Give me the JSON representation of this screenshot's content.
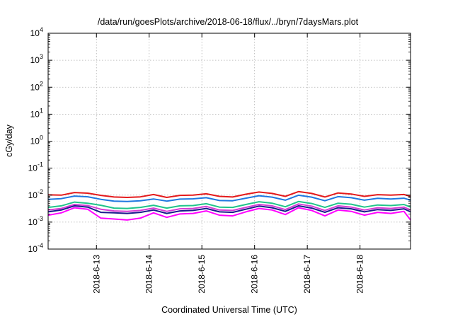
{
  "chart_data": {
    "type": "line",
    "title": "/data/run/goesPlots/archive/2018-06-18/flux/../bryn/7daysMars.plot",
    "xlabel": "Coordinated Universal Time (UTC)",
    "ylabel": "cGy/day",
    "yscale": "log",
    "ylim": [
      0.0001,
      10000
    ],
    "xlim": [
      "2018-06-12T02:00",
      "2018-06-18T23:00"
    ],
    "x_ticks": [
      "2018-6-13",
      "2018-6-14",
      "2018-6-15",
      "2018-6-16",
      "2018-6-17",
      "2018-6-18"
    ],
    "y_ticks": [
      {
        "base": "10",
        "exp": "-4",
        "value": 0.0001
      },
      {
        "base": "10",
        "exp": "-3",
        "value": 0.001
      },
      {
        "base": "10",
        "exp": "-2",
        "value": 0.01
      },
      {
        "base": "10",
        "exp": "-1",
        "value": 0.1
      },
      {
        "base": "10",
        "exp": "0",
        "value": 1
      },
      {
        "base": "10",
        "exp": "1",
        "value": 10
      },
      {
        "base": "10",
        "exp": "2",
        "value": 100
      },
      {
        "base": "10",
        "exp": "3",
        "value": 1000
      },
      {
        "base": "10",
        "exp": "4",
        "value": 10000
      }
    ],
    "grid": true,
    "x": [
      "2018-06-12T02:00",
      "2018-06-12T08:00",
      "2018-06-12T14:00",
      "2018-06-12T20:00",
      "2018-06-13T02:00",
      "2018-06-13T08:00",
      "2018-06-13T14:00",
      "2018-06-13T20:00",
      "2018-06-14T02:00",
      "2018-06-14T08:00",
      "2018-06-14T14:00",
      "2018-06-14T20:00",
      "2018-06-15T02:00",
      "2018-06-15T08:00",
      "2018-06-15T14:00",
      "2018-06-15T20:00",
      "2018-06-16T02:00",
      "2018-06-16T08:00",
      "2018-06-16T14:00",
      "2018-06-16T20:00",
      "2018-06-17T02:00",
      "2018-06-17T08:00",
      "2018-06-17T14:00",
      "2018-06-17T20:00",
      "2018-06-18T02:00",
      "2018-06-18T08:00",
      "2018-06-18T14:00",
      "2018-06-18T20:00",
      "2018-06-18T23:00"
    ],
    "series": [
      {
        "color": "#e41a1c",
        "values": [
          0.0102,
          0.01,
          0.0125,
          0.0118,
          0.0098,
          0.0085,
          0.0082,
          0.0086,
          0.0105,
          0.0082,
          0.0098,
          0.01,
          0.0112,
          0.009,
          0.0085,
          0.0108,
          0.013,
          0.0115,
          0.009,
          0.0135,
          0.0115,
          0.0085,
          0.012,
          0.011,
          0.009,
          0.0104,
          0.01,
          0.0105,
          0.009
        ]
      },
      {
        "color": "#1f78e0",
        "values": [
          0.007,
          0.0074,
          0.0092,
          0.0087,
          0.007,
          0.006,
          0.0058,
          0.0062,
          0.0072,
          0.006,
          0.0071,
          0.0073,
          0.008,
          0.0063,
          0.0062,
          0.0077,
          0.0095,
          0.0084,
          0.0065,
          0.0099,
          0.0084,
          0.0062,
          0.0088,
          0.008,
          0.0065,
          0.0076,
          0.0072,
          0.0077,
          0.0065
        ]
      },
      {
        "color": "#21c48a",
        "values": [
          0.0035,
          0.004,
          0.0055,
          0.005,
          0.0042,
          0.0033,
          0.0032,
          0.0035,
          0.0042,
          0.0033,
          0.004,
          0.0041,
          0.0048,
          0.0036,
          0.0035,
          0.0045,
          0.0057,
          0.005,
          0.0037,
          0.0058,
          0.0049,
          0.0035,
          0.005,
          0.0046,
          0.0036,
          0.0043,
          0.0041,
          0.0045,
          0.0036
        ]
      },
      {
        "color": "#d63bd6",
        "values": [
          0.0028,
          0.0032,
          0.0045,
          0.0041,
          0.003,
          0.0026,
          0.0025,
          0.0027,
          0.0033,
          0.0025,
          0.0031,
          0.0032,
          0.0038,
          0.0028,
          0.0027,
          0.0035,
          0.0045,
          0.004,
          0.0029,
          0.0047,
          0.0039,
          0.0027,
          0.004,
          0.0036,
          0.0028,
          0.0034,
          0.0032,
          0.0036,
          0.0028
        ]
      },
      {
        "color": "#1a1a8c",
        "values": [
          0.0024,
          0.0028,
          0.004,
          0.0036,
          0.0023,
          0.0022,
          0.0021,
          0.0023,
          0.0028,
          0.0021,
          0.0026,
          0.0027,
          0.0032,
          0.0024,
          0.0023,
          0.003,
          0.0039,
          0.0034,
          0.0025,
          0.004,
          0.0033,
          0.0023,
          0.0034,
          0.0031,
          0.0024,
          0.0029,
          0.0027,
          0.0031,
          0.0024
        ]
      },
      {
        "color": "#ff00ff",
        "values": [
          0.0018,
          0.0022,
          0.0034,
          0.003,
          0.0014,
          0.0013,
          0.0012,
          0.0014,
          0.0022,
          0.0015,
          0.002,
          0.0021,
          0.0026,
          0.0018,
          0.0017,
          0.0024,
          0.0032,
          0.0028,
          0.0019,
          0.0034,
          0.0027,
          0.0017,
          0.0028,
          0.0025,
          0.0018,
          0.0023,
          0.0021,
          0.0025,
          0.0012
        ]
      }
    ]
  }
}
